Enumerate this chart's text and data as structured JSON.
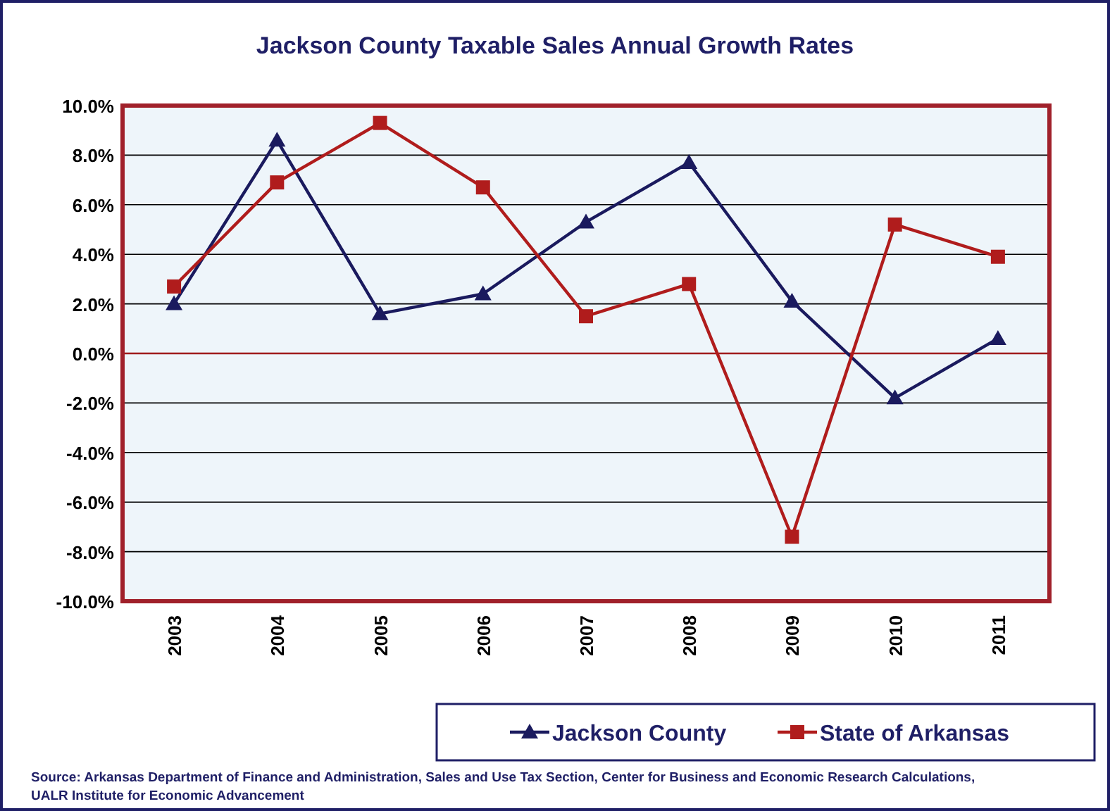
{
  "chart_data": {
    "type": "line",
    "title": "Jackson County Taxable Sales Annual Growth Rates",
    "categories": [
      "2003",
      "2004",
      "2005",
      "2006",
      "2007",
      "2008",
      "2009",
      "2010",
      "2011"
    ],
    "series": [
      {
        "name": "Jackson County",
        "color": "#1a1a5e",
        "marker": "triangle",
        "values": [
          2.0,
          8.6,
          1.6,
          2.4,
          5.3,
          7.7,
          2.1,
          -1.8,
          0.6
        ]
      },
      {
        "name": "State of Arkansas",
        "color": "#b01c1c",
        "marker": "square",
        "values": [
          2.7,
          6.9,
          9.3,
          6.7,
          1.5,
          2.8,
          -7.4,
          5.2,
          3.9
        ]
      }
    ],
    "ylim": [
      -10,
      10
    ],
    "yticks": [
      {
        "value": -10,
        "label": "-10.0%"
      },
      {
        "value": -8,
        "label": "-8.0%"
      },
      {
        "value": -6,
        "label": "-6.0%"
      },
      {
        "value": -4,
        "label": "-4.0%"
      },
      {
        "value": -2,
        "label": "-2.0%"
      },
      {
        "value": 0,
        "label": "0.0%"
      },
      {
        "value": 2,
        "label": "2.0%"
      },
      {
        "value": 4,
        "label": "4.0%"
      },
      {
        "value": 6,
        "label": "6.0%"
      },
      {
        "value": 8,
        "label": "8.0%"
      },
      {
        "value": 10,
        "label": "10.0%"
      }
    ],
    "grid": "y",
    "legend": "bottom",
    "line_style": "solid",
    "ref_lines": [
      {
        "axis": "y",
        "value": 0,
        "color": "#a01c1c"
      }
    ],
    "annotations": [
      "Source: Arkansas Department of Finance and Administration, Sales and Use Tax Section, Center for Business and Economic Research Calculations,",
      "UALR Institute for Economic Advancement"
    ]
  }
}
